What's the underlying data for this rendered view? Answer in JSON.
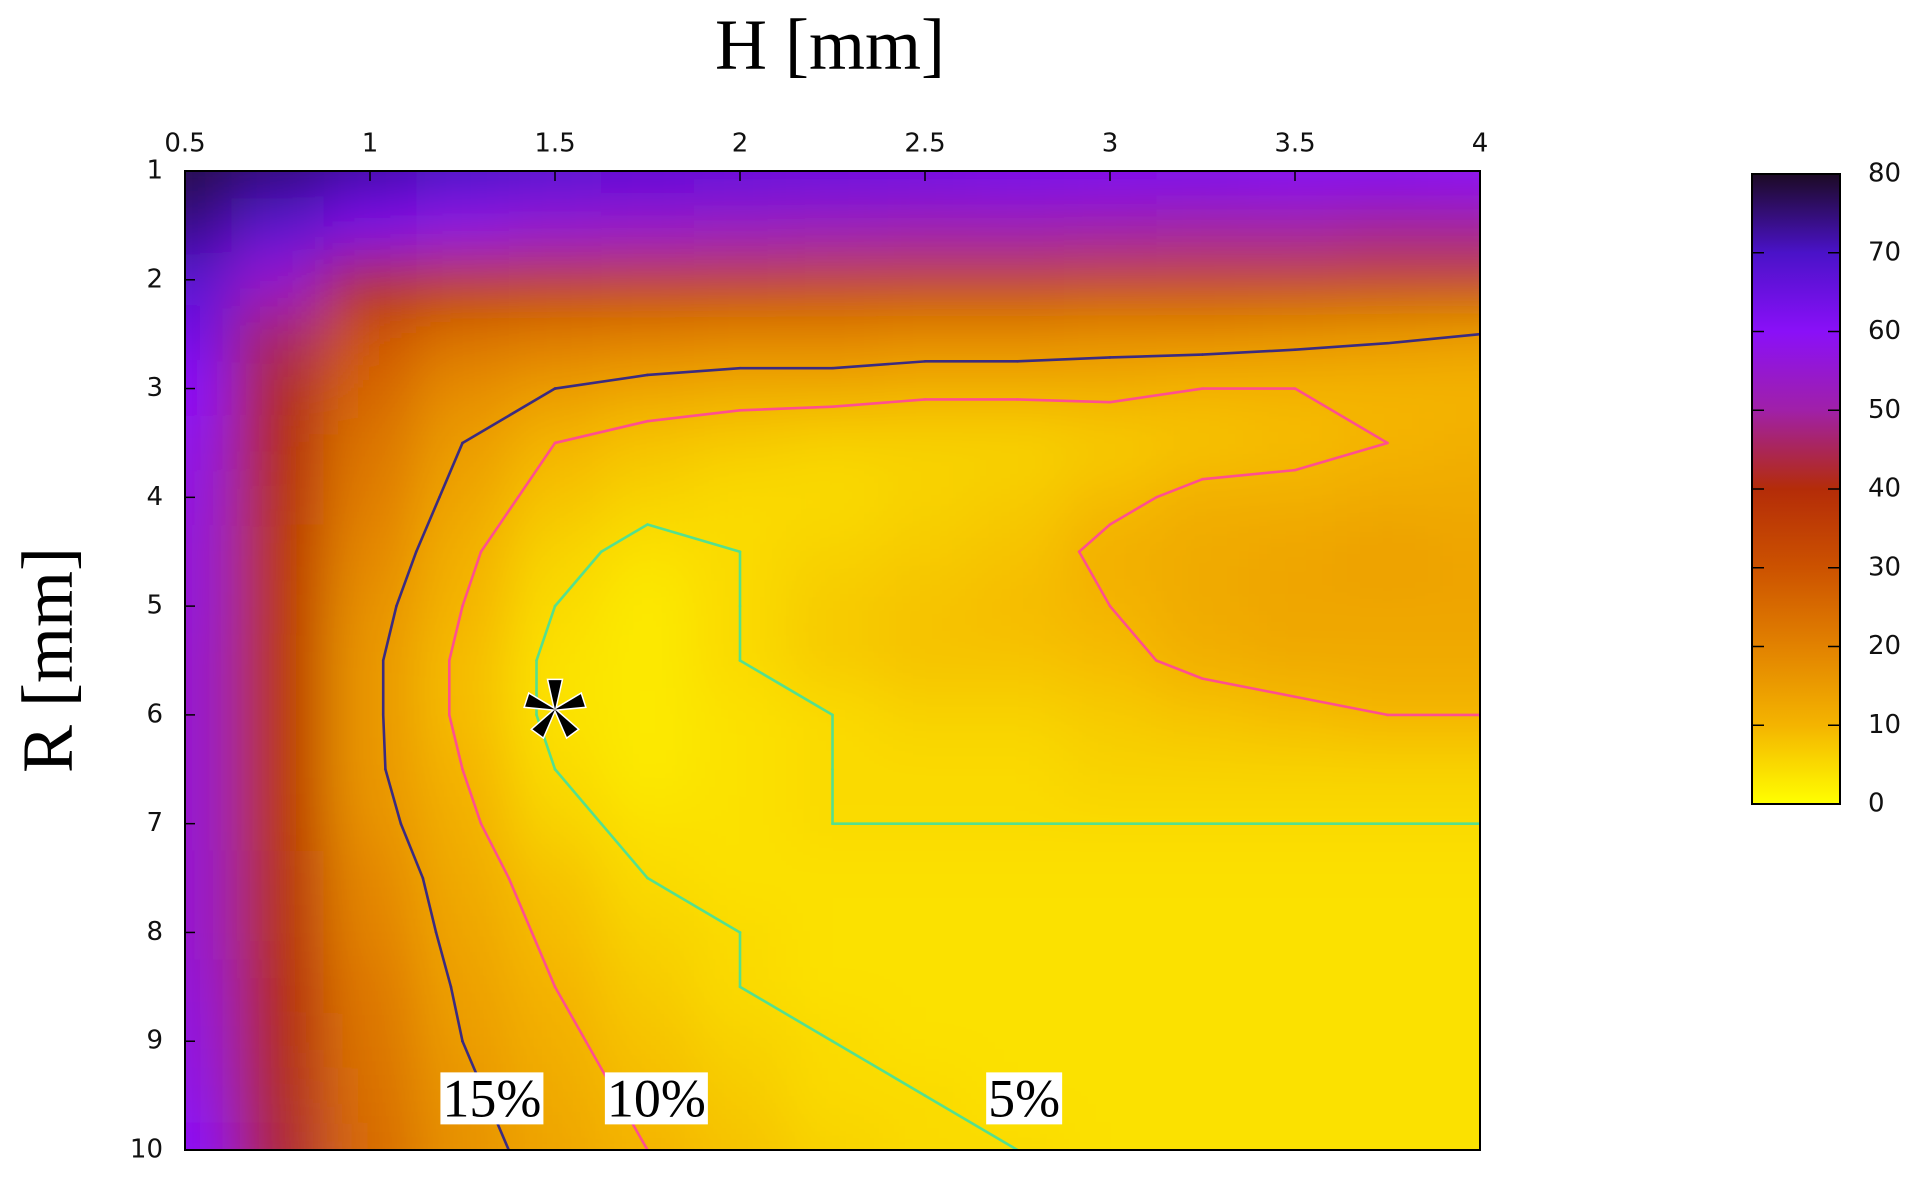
{
  "chart_data": {
    "type": "heatmap",
    "x_label": "H [mm]",
    "y_label": "R [mm]",
    "x": [
      0.5,
      0.75,
      1,
      1.25,
      1.5,
      1.75,
      2,
      2.25,
      2.5,
      2.75,
      3,
      3.25,
      3.5,
      3.75,
      4
    ],
    "y": [
      1,
      1.5,
      2,
      2.5,
      3,
      3.5,
      4,
      4.5,
      5,
      5.5,
      6,
      6.5,
      7,
      7.5,
      8,
      8.5,
      9,
      9.5,
      10
    ],
    "z": [
      [
        78,
        75,
        72,
        70,
        68,
        67,
        66,
        65,
        64,
        63,
        62,
        62,
        61,
        61,
        60
      ],
      [
        74,
        68,
        62,
        58,
        56,
        55,
        54,
        53,
        52,
        52,
        51,
        50,
        50,
        49,
        49
      ],
      [
        68,
        55,
        42,
        38,
        37,
        36,
        36,
        35,
        35,
        35,
        34,
        34,
        34,
        34,
        34
      ],
      [
        64,
        46,
        30,
        24,
        22,
        21,
        20,
        20,
        19,
        19,
        18,
        18,
        17,
        16,
        15
      ],
      [
        60,
        42,
        26,
        18,
        15,
        13,
        12,
        12,
        11,
        11,
        11,
        10,
        10,
        10,
        10
      ],
      [
        58,
        40,
        23,
        15,
        10,
        8,
        7,
        6,
        6,
        6,
        7,
        8,
        9,
        10,
        11
      ],
      [
        57,
        39,
        21,
        13,
        8,
        6,
        5,
        5,
        6,
        7,
        9,
        11,
        11,
        12,
        12
      ],
      [
        56,
        38,
        19,
        11,
        6,
        4,
        5,
        6,
        7,
        8,
        11,
        12,
        13,
        14,
        13
      ],
      [
        56,
        38,
        17,
        10,
        5,
        3,
        5,
        7,
        8,
        9,
        10,
        12,
        13,
        13,
        13
      ],
      [
        55,
        38,
        16,
        9,
        4,
        3,
        5,
        7,
        8,
        8,
        9,
        11,
        12,
        12,
        12
      ],
      [
        55,
        38,
        16,
        9,
        4,
        3,
        4,
        5,
        6,
        6,
        7,
        8,
        9,
        10,
        10
      ],
      [
        55,
        38,
        16,
        10,
        5,
        3,
        4,
        5,
        5,
        5,
        6,
        6,
        6,
        6,
        6
      ],
      [
        55,
        38,
        17,
        11,
        6,
        4,
        4,
        5,
        5,
        5,
        5,
        5,
        5,
        5,
        5
      ],
      [
        55,
        39,
        19,
        12,
        8,
        5,
        4,
        4,
        4,
        4,
        4,
        4,
        4,
        4,
        4
      ],
      [
        55,
        39,
        20,
        13,
        9,
        6,
        5,
        4,
        4,
        4,
        4,
        4,
        4,
        4,
        4
      ],
      [
        56,
        40,
        22,
        14,
        10,
        7,
        5,
        4,
        4,
        4,
        4,
        4,
        4,
        4,
        4
      ],
      [
        57,
        41,
        23,
        15,
        11,
        8,
        6,
        5,
        4,
        4,
        4,
        4,
        4,
        4,
        4
      ],
      [
        58,
        42,
        24,
        16,
        12,
        9,
        7,
        5,
        5,
        4,
        4,
        4,
        4,
        4,
        4
      ],
      [
        60,
        43,
        25,
        17,
        13,
        10,
        8,
        6,
        5,
        5,
        4,
        4,
        4,
        4,
        4
      ]
    ],
    "xlim": [
      0.5,
      4
    ],
    "ylim": [
      1,
      10
    ],
    "y_reversed": true,
    "xticks": [
      0.5,
      1,
      1.5,
      2,
      2.5,
      3,
      3.5,
      4
    ],
    "yticks": [
      1,
      2,
      3,
      4,
      5,
      6,
      7,
      8,
      9,
      10
    ],
    "zlim": [
      0,
      80
    ],
    "zticks": [
      0,
      10,
      20,
      30,
      40,
      50,
      60,
      70,
      80
    ],
    "colormap": [
      "#ffff00",
      "#f4b400",
      "#e28200",
      "#cc5200",
      "#b42c08",
      "#a020a8",
      "#8a10f8",
      "#4a12c8",
      "#1c0a24"
    ],
    "contours": [
      {
        "level": 15,
        "color": "#3b2b80",
        "label": "15%"
      },
      {
        "level": 10,
        "color": "#ff4f8f",
        "label": "10%"
      },
      {
        "level": 5,
        "color": "#55e08e",
        "label": "5%"
      }
    ],
    "marker": {
      "x": 1.5,
      "y": 5.95
    }
  }
}
